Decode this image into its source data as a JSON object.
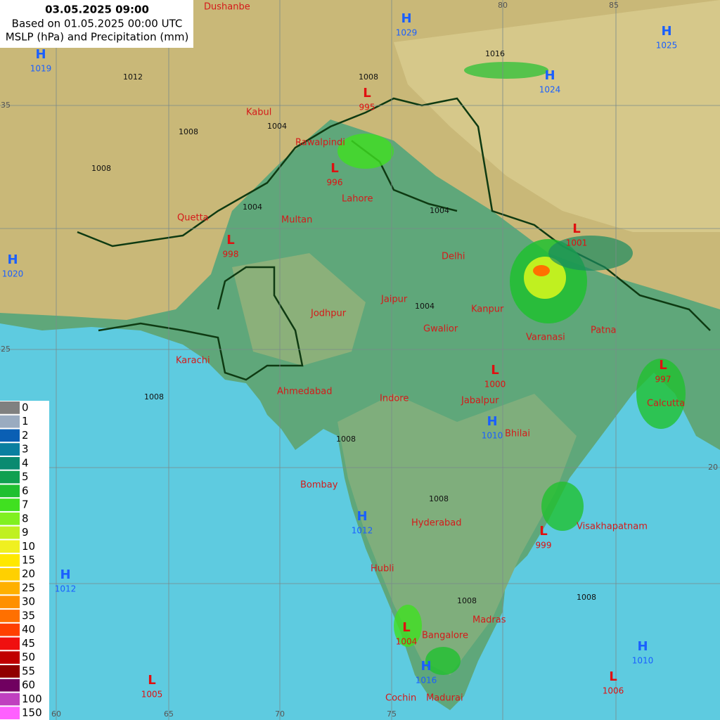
{
  "header": {
    "title": "03.05.2025 09:00",
    "line1": "Based on 01.05.2025 00:00 UTC",
    "line2": "MSLP (hPa) and Precipitation (mm)"
  },
  "legend": [
    {
      "label": "0",
      "color": "#808080"
    },
    {
      "label": "1",
      "color": "#9aabc0"
    },
    {
      "label": "2",
      "color": "#0a5fb4"
    },
    {
      "label": "3",
      "color": "#0a7fa0"
    },
    {
      "label": "4",
      "color": "#0a8a70"
    },
    {
      "label": "5",
      "color": "#10a050"
    },
    {
      "label": "6",
      "color": "#20c030"
    },
    {
      "label": "7",
      "color": "#40e020"
    },
    {
      "label": "8",
      "color": "#80f020"
    },
    {
      "label": "9",
      "color": "#c0f020"
    },
    {
      "label": "10",
      "color": "#f0f020"
    },
    {
      "label": "15",
      "color": "#ffe800"
    },
    {
      "label": "20",
      "color": "#ffd000"
    },
    {
      "label": "25",
      "color": "#ffb000"
    },
    {
      "label": "30",
      "color": "#ff9000"
    },
    {
      "label": "35",
      "color": "#ff7000"
    },
    {
      "label": "40",
      "color": "#ff4000"
    },
    {
      "label": "45",
      "color": "#f01010"
    },
    {
      "label": "50",
      "color": "#c00000"
    },
    {
      "label": "55",
      "color": "#900000"
    },
    {
      "label": "60",
      "color": "#700060"
    },
    {
      "label": "100",
      "color": "#c040c0"
    },
    {
      "label": "150",
      "color": "#ff60ff"
    }
  ],
  "pressure_centers": [
    {
      "type": "H",
      "value": "1029"
    },
    {
      "type": "H",
      "value": "1025"
    },
    {
      "type": "H",
      "value": "1019"
    },
    {
      "type": "H",
      "value": "1024"
    },
    {
      "type": "L",
      "value": "995"
    },
    {
      "type": "L",
      "value": "996"
    },
    {
      "type": "L",
      "value": "998"
    },
    {
      "type": "H",
      "value": "1020"
    },
    {
      "type": "L",
      "value": "1001"
    },
    {
      "type": "L",
      "value": "1000"
    },
    {
      "type": "L",
      "value": "997"
    },
    {
      "type": "H",
      "value": "1010"
    },
    {
      "type": "H",
      "value": "1012"
    },
    {
      "type": "H",
      "value": "1012"
    },
    {
      "type": "L",
      "value": "999"
    },
    {
      "type": "L",
      "value": "1004"
    },
    {
      "type": "H",
      "value": "1016"
    },
    {
      "type": "H",
      "value": "1010"
    },
    {
      "type": "L",
      "value": "1006"
    },
    {
      "type": "L",
      "value": "1005"
    }
  ],
  "cities": [
    "Dushanbe",
    "Kabul",
    "Rawalpindi",
    "Lahore",
    "Quetta",
    "Multan",
    "Delhi",
    "Jaipur",
    "Kanpur",
    "Jodhpur",
    "Gwalior",
    "Varanasi",
    "Patna",
    "Karachi",
    "Ahmedabad",
    "Indore",
    "Jabalpur",
    "Bhilai",
    "Calcutta",
    "Bombay",
    "Hyderabad",
    "Visakhapatnam",
    "Hubli",
    "Madras",
    "Bangalore",
    "Cochin",
    "Madurai"
  ],
  "isobar_labels": [
    "1016",
    "1012",
    "1008",
    "1008",
    "1004",
    "1004",
    "1008",
    "1004",
    "1004",
    "1008",
    "1008",
    "1008",
    "1008",
    "1008"
  ],
  "grid_labels": [
    "80",
    "85",
    "35",
    "25",
    "20",
    "60",
    "65",
    "70",
    "75"
  ]
}
